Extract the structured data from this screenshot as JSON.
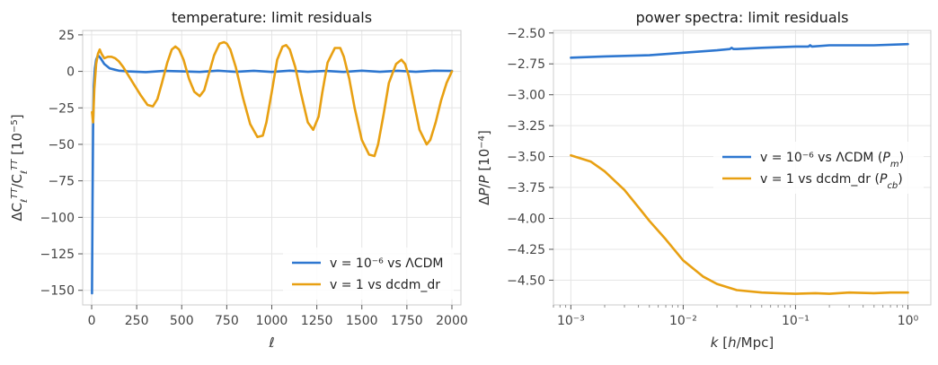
{
  "colors": {
    "series_blue": "#2e77d0",
    "series_orange": "#e8a012",
    "grid": "#e5e5e5",
    "frame": "#cccccc"
  },
  "chart_data": [
    {
      "type": "line",
      "title": "temperature: limit residuals",
      "xlabel": "ℓ",
      "ylabel": "ΔC_ℓ^TT / C_ℓ^TT [10⁻⁵]",
      "xlim": [
        -50,
        2050
      ],
      "ylim": [
        -160,
        28
      ],
      "xticks": [
        0,
        250,
        500,
        750,
        1000,
        1250,
        1500,
        1750,
        2000
      ],
      "xtick_labels": [
        "0",
        "250",
        "500",
        "750",
        "1000",
        "1250",
        "1500",
        "1750",
        "2000"
      ],
      "yticks": [
        25,
        0,
        -25,
        -50,
        -75,
        -100,
        -125,
        -150
      ],
      "ytick_labels": [
        "25",
        "0",
        "−25",
        "−50",
        "−75",
        "−100",
        "−125",
        "−150"
      ],
      "grid": true,
      "legend_position": "lower right",
      "series": [
        {
          "name": "v = 10⁻⁶ vs ΛCDM",
          "color": "#2e77d0",
          "x": [
            2,
            5,
            8,
            12,
            18,
            25,
            35,
            50,
            70,
            100,
            150,
            200,
            300,
            400,
            500,
            600,
            700,
            800,
            900,
            1000,
            1100,
            1200,
            1300,
            1400,
            1500,
            1600,
            1700,
            1800,
            1900,
            2000
          ],
          "y": [
            -152,
            -90,
            -40,
            -10,
            2,
            8,
            11,
            9,
            5,
            2,
            0.5,
            0,
            -0.5,
            0.3,
            0,
            -0.4,
            0.5,
            -0.3,
            0.4,
            -0.4,
            0.5,
            -0.3,
            0.3,
            -0.4,
            0.5,
            -0.3,
            0.4,
            -0.3,
            0.5,
            0.3
          ]
        },
        {
          "name": "v = 1 vs dcdm_dr",
          "color": "#e8a012",
          "x": [
            2,
            8,
            15,
            25,
            35,
            45,
            55,
            70,
            90,
            110,
            130,
            150,
            175,
            200,
            230,
            270,
            310,
            340,
            365,
            390,
            420,
            445,
            465,
            485,
            510,
            540,
            570,
            600,
            625,
            650,
            680,
            710,
            735,
            750,
            770,
            800,
            840,
            880,
            920,
            950,
            970,
            1000,
            1030,
            1060,
            1080,
            1100,
            1130,
            1160,
            1200,
            1230,
            1260,
            1280,
            1310,
            1350,
            1380,
            1400,
            1430,
            1460,
            1500,
            1540,
            1570,
            1590,
            1620,
            1650,
            1690,
            1720,
            1740,
            1760,
            1790,
            1820,
            1860,
            1880,
            1910,
            1940,
            1970,
            2000
          ],
          "y": [
            -28,
            -35,
            -12,
            5,
            12,
            15,
            12,
            9,
            10,
            10,
            9,
            7,
            3,
            -2,
            -8,
            -16,
            -23,
            -24,
            -19,
            -8,
            6,
            15,
            17,
            15,
            8,
            -5,
            -14,
            -17,
            -13,
            -2,
            11,
            19,
            20,
            19,
            15,
            3,
            -18,
            -36,
            -45,
            -44,
            -35,
            -14,
            8,
            17,
            18,
            15,
            3,
            -14,
            -35,
            -40,
            -31,
            -15,
            6,
            16,
            16,
            10,
            -5,
            -25,
            -47,
            -57,
            -58,
            -50,
            -30,
            -8,
            5,
            8,
            5,
            -3,
            -22,
            -40,
            -50,
            -47,
            -35,
            -20,
            -8,
            0
          ]
        }
      ]
    },
    {
      "type": "line",
      "title": "power spectra: limit residuals",
      "xlabel": "k [h/Mpc]",
      "ylabel": "ΔP/P [10⁻⁴]",
      "xscale": "log",
      "xlim": [
        0.0007,
        1.6
      ],
      "ylim": [
        -4.7,
        -2.48
      ],
      "xticks": [
        0.001,
        0.01,
        0.1,
        1
      ],
      "xtick_labels": [
        "10⁻³",
        "10⁻²",
        "10⁻¹",
        "10⁰"
      ],
      "yticks": [
        -2.5,
        -2.75,
        -3.0,
        -3.25,
        -3.5,
        -3.75,
        -4.0,
        -4.25,
        -4.5
      ],
      "ytick_labels": [
        "−2.50",
        "−2.75",
        "−3.00",
        "−3.25",
        "−3.50",
        "−3.75",
        "−4.00",
        "−4.25",
        "−4.50"
      ],
      "grid": true,
      "legend_position": "center right",
      "series": [
        {
          "name": "v = 10⁻⁶ vs ΛCDM  (P_m)",
          "color": "#2e77d0",
          "x": [
            0.001,
            0.002,
            0.005,
            0.01,
            0.02,
            0.026,
            0.027,
            0.028,
            0.03,
            0.05,
            0.1,
            0.13,
            0.135,
            0.14,
            0.2,
            0.5,
            1.0
          ],
          "y": [
            -2.7,
            -2.69,
            -2.68,
            -2.66,
            -2.64,
            -2.63,
            -2.62,
            -2.63,
            -2.63,
            -2.62,
            -2.61,
            -2.61,
            -2.6,
            -2.61,
            -2.6,
            -2.6,
            -2.59
          ]
        },
        {
          "name": "v = 1 vs dcdm_dr  (P_cb)",
          "color": "#e8a012",
          "x": [
            0.001,
            0.0015,
            0.002,
            0.003,
            0.004,
            0.005,
            0.007,
            0.01,
            0.015,
            0.02,
            0.03,
            0.05,
            0.07,
            0.1,
            0.15,
            0.2,
            0.3,
            0.5,
            0.7,
            1.0
          ],
          "y": [
            -3.49,
            -3.54,
            -3.62,
            -3.77,
            -3.91,
            -4.02,
            -4.17,
            -4.34,
            -4.47,
            -4.53,
            -4.58,
            -4.6,
            -4.605,
            -4.61,
            -4.605,
            -4.61,
            -4.6,
            -4.605,
            -4.6,
            -4.6
          ]
        }
      ]
    }
  ]
}
